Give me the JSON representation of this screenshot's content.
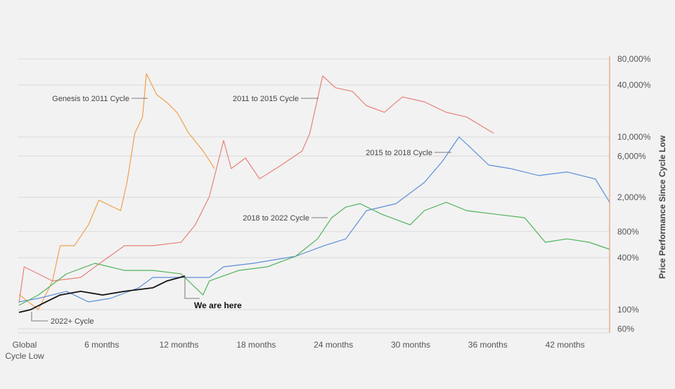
{
  "chart_data": {
    "type": "line",
    "title": "",
    "xlabel": "",
    "ylabel": "Price Performance Since Cycle Low",
    "y_scale": "log",
    "ylim": [
      55,
      80000
    ],
    "xlim": [
      0,
      47
    ],
    "grid": true,
    "legend": "none (inline labels)",
    "x_ticks": [
      {
        "month": 0,
        "label": [
          "Global",
          "Cycle Low"
        ]
      },
      {
        "month": 6,
        "label": [
          "6 months"
        ]
      },
      {
        "month": 12,
        "label": [
          "12 months"
        ]
      },
      {
        "month": 18,
        "label": [
          "18 months"
        ]
      },
      {
        "month": 24,
        "label": [
          "24 months"
        ]
      },
      {
        "month": 30,
        "label": [
          "30 months"
        ]
      },
      {
        "month": 36,
        "label": [
          "36 months"
        ]
      },
      {
        "month": 42,
        "label": [
          "42 months"
        ]
      }
    ],
    "y_ticks": [
      {
        "value": 80000,
        "label": "80,000%"
      },
      {
        "value": 40000,
        "label": "40,000%"
      },
      {
        "value": 10000,
        "label": "10,000%"
      },
      {
        "value": 6000,
        "label": "6,000%"
      },
      {
        "value": 2000,
        "label": "2,000%"
      },
      {
        "value": 800,
        "label": "800%"
      },
      {
        "value": 400,
        "label": "400%"
      },
      {
        "value": 100,
        "label": "100%"
      },
      {
        "value": 60,
        "label": "60%"
      }
    ],
    "series": [
      {
        "name": "Genesis to 2011 Cycle",
        "color": "#f0a04b",
        "x": [
          0,
          1.5,
          2.6,
          3.2,
          4.3,
          5.4,
          6.2,
          7.9,
          8.4,
          9,
          9.6,
          9.9,
          10.7,
          11.5,
          12.3,
          13.2,
          14.3,
          15.2
        ],
        "y": [
          150,
          100,
          215,
          550,
          550,
          960,
          1850,
          1400,
          3000,
          11000,
          17000,
          54000,
          31000,
          25000,
          19000,
          11000,
          6900,
          4300
        ]
      },
      {
        "name": "2011 to 2015 Cycle",
        "color": "#e8807a",
        "x": [
          0,
          0.4,
          1.5,
          2.6,
          4.8,
          5.9,
          8.2,
          10.4,
          12.6,
          13.7,
          14.8,
          15.9,
          16.5,
          17.6,
          18.7,
          20.4,
          22,
          22.6,
          23.6,
          24.6,
          25.9,
          27,
          28.4,
          29.8,
          31.5,
          33.2,
          34.8,
          36.9
        ],
        "y": [
          120,
          313,
          260,
          215,
          236,
          313,
          550,
          550,
          603,
          960,
          2040,
          9100,
          4300,
          5700,
          3270,
          4730,
          6870,
          11000,
          51000,
          37000,
          33700,
          23000,
          19300,
          29000,
          25500,
          19300,
          17000,
          11000
        ]
      },
      {
        "name": "2015 to 2018 Cycle",
        "color": "#5b8fd9",
        "x": [
          0,
          1.5,
          3.7,
          5.4,
          7.1,
          9.3,
          10.4,
          12.6,
          14.8,
          15.9,
          18.2,
          21.5,
          23.7,
          25.4,
          27,
          29.3,
          31.5,
          32.9,
          34.2,
          35.1,
          36.5,
          38.2,
          40.4,
          42.6,
          44.8,
          45.9
        ],
        "y": [
          123,
          135,
          163,
          123,
          135,
          179,
          236,
          236,
          236,
          313,
          344,
          415,
          550,
          660,
          1400,
          1690,
          2970,
          5200,
          10000,
          7500,
          4730,
          4300,
          3570,
          3930,
          3250,
          1750
        ]
      },
      {
        "name": "2018 to 2022 Cycle",
        "color": "#4fb35a",
        "x": [
          0,
          1.5,
          3.7,
          5.9,
          8.2,
          10.4,
          12.6,
          14.3,
          14.8,
          17.1,
          19.3,
          21.5,
          23.2,
          24.3,
          25.4,
          26.5,
          28.2,
          30.4,
          31.5,
          33.2,
          34.8,
          37.1,
          39.3,
          40.9,
          42.6,
          44.3,
          45.9
        ],
        "y": [
          112,
          148,
          260,
          344,
          285,
          285,
          260,
          148,
          215,
          285,
          313,
          415,
          660,
          1160,
          1540,
          1690,
          1270,
          960,
          1400,
          1750,
          1400,
          1270,
          1160,
          603,
          660,
          603,
          500
        ]
      },
      {
        "name": "2022+ Cycle",
        "color": "#111111",
        "x": [
          0,
          0.9,
          2.1,
          3.2,
          4.8,
          6.5,
          8.2,
          10.4,
          11.5,
          12.9
        ],
        "y": [
          93,
          100,
          123,
          148,
          163,
          148,
          163,
          179,
          215,
          245
        ]
      }
    ],
    "annotations": [
      {
        "text": "Genesis to 2011 Cycle",
        "series": 0
      },
      {
        "text": "2011 to 2015 Cycle",
        "series": 1
      },
      {
        "text": "2015 to 2018 Cycle",
        "series": 2
      },
      {
        "text": "2018 to 2022 Cycle",
        "series": 3
      },
      {
        "text": "2022+ Cycle",
        "series": 4
      },
      {
        "text": "We are here",
        "series": 4
      }
    ]
  }
}
